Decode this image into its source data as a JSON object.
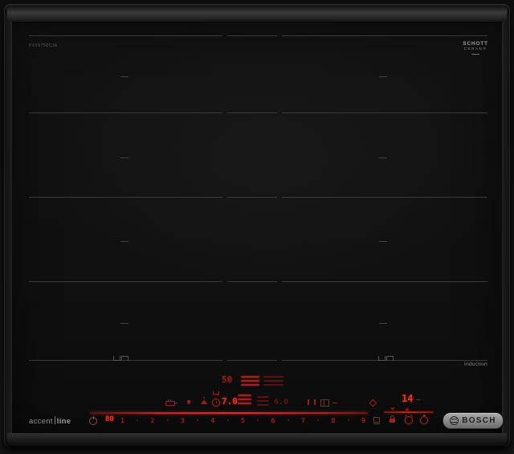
{
  "surface": {
    "model_marking": "PXY875DC1E",
    "induction_label": "Induction"
  },
  "logos": {
    "schott_line1": "SCHOTT",
    "schott_line2": "CERAN®",
    "accent_prefix": "accent",
    "accent_suffix": "line",
    "bosch": "BOSCH"
  },
  "panel": {
    "sensor_temp_display": "50",
    "left_level_display": "7.0",
    "right_level_display": "6.0",
    "boost_display": "80",
    "timer_display": "14",
    "slider_levels": [
      "1",
      "2",
      "3",
      "4",
      "5",
      "6",
      "7",
      "8",
      "9"
    ],
    "colors": {
      "red_bright": "#e23222",
      "red_mid": "#a6211a",
      "red_dim": "#5f130d",
      "glass_black": "#101010"
    },
    "icons": [
      "power-icon",
      "frying-sensor-pan-icon",
      "droplet-icon",
      "steam-icon",
      "pot-icon",
      "timer-clock-icon",
      "pause-icon",
      "move-pan-icon",
      "home-connect-icon",
      "wipe-protection-icon",
      "child-lock-icon",
      "alarm-clock-icon",
      "stopwatch-icon",
      "timer-down-icon",
      "timer-up-icon"
    ]
  }
}
